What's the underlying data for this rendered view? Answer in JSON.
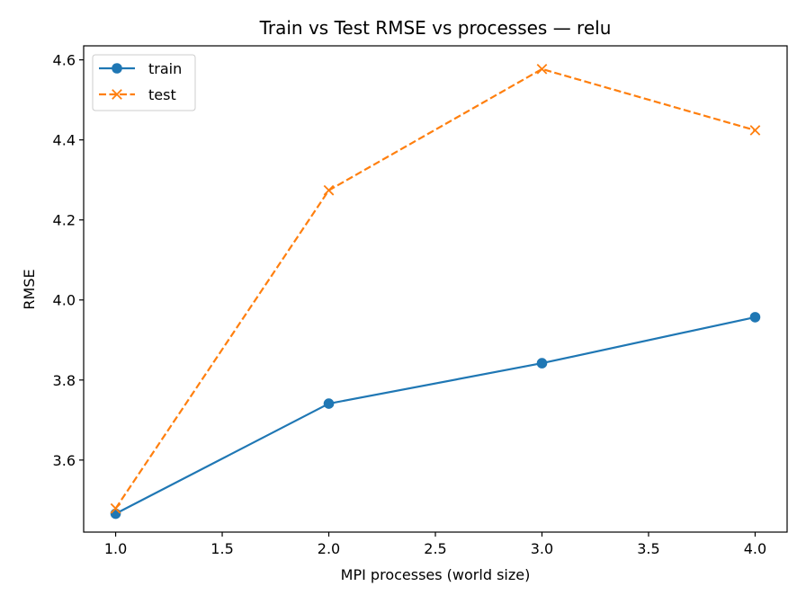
{
  "chart_data": {
    "type": "line",
    "title": "Train vs Test RMSE vs processes — relu",
    "xlabel": "MPI processes (world size)",
    "ylabel": "RMSE",
    "xlim": [
      0.85,
      4.15
    ],
    "ylim": [
      3.42,
      4.635
    ],
    "xticks": [
      1.0,
      1.5,
      2.0,
      2.5,
      3.0,
      3.5,
      4.0
    ],
    "xtick_labels": [
      "1.0",
      "1.5",
      "2.0",
      "2.5",
      "3.0",
      "3.5",
      "4.0"
    ],
    "yticks": [
      3.6,
      3.8,
      4.0,
      4.2,
      4.4,
      4.6
    ],
    "ytick_labels": [
      "3.6",
      "3.8",
      "4.0",
      "4.2",
      "4.4",
      "4.6"
    ],
    "grid": false,
    "legend_position": "top-left",
    "x": [
      1.0,
      2.0,
      3.0,
      4.0
    ],
    "series": [
      {
        "name": "train",
        "values": [
          3.466,
          3.741,
          3.842,
          3.957
        ],
        "color": "#1f77b4",
        "marker": "circle",
        "line_style": "solid"
      },
      {
        "name": "test",
        "values": [
          3.479,
          4.274,
          4.577,
          4.424
        ],
        "color": "#ff7f0e",
        "marker": "x",
        "line_style": "dashed"
      }
    ]
  }
}
